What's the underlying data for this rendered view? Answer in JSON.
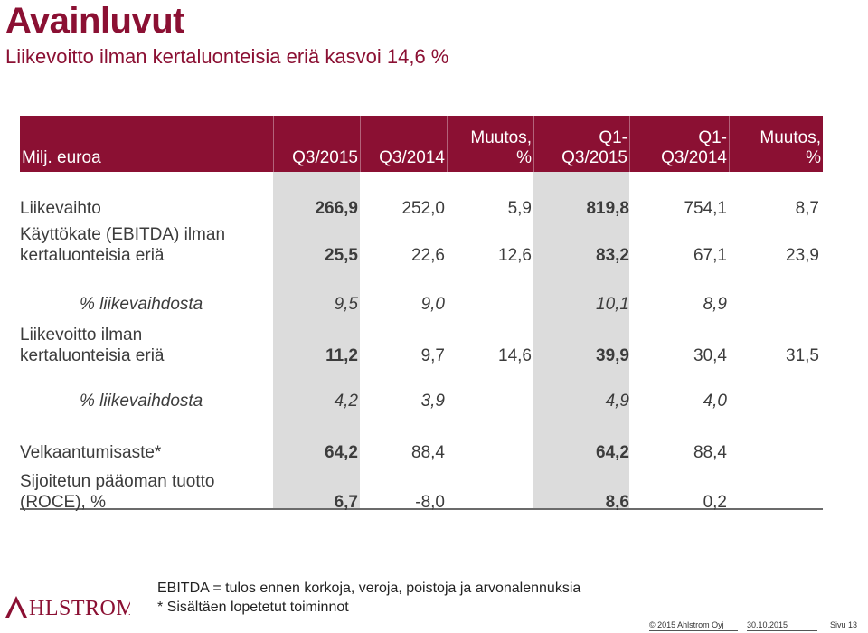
{
  "page": {
    "title": "Avainluvut",
    "subtitle": "Liikevoitto ilman kertaluonteisia eriä kasvoi 14,6 %"
  },
  "table": {
    "header": {
      "unit": "Milj. euroa",
      "columns": [
        [
          "Q3/2015"
        ],
        [
          "Q3/2014"
        ],
        [
          "Muutos,",
          "%"
        ],
        [
          "Q1-",
          "Q3/2015"
        ],
        [
          "Q1-",
          "Q3/2014"
        ],
        [
          "Muutos,",
          "%"
        ]
      ]
    },
    "rows": [
      {
        "label": [
          "Liikevaihto"
        ],
        "values": [
          "266,9",
          "252,0",
          "5,9",
          "819,8",
          "754,1",
          "8,7"
        ],
        "style": "normal"
      },
      {
        "label": [
          "Käyttökate (EBITDA) ilman",
          "kertaluonteisia eriä"
        ],
        "values": [
          "25,5",
          "22,6",
          "12,6",
          "83,2",
          "67,1",
          "23,9"
        ],
        "style": "normal"
      },
      {
        "label": [
          "% liikevaihdosta"
        ],
        "values": [
          "9,5",
          "9,0",
          "",
          "10,1",
          "8,9",
          ""
        ],
        "style": "sub"
      },
      {
        "label": [
          "Liikevoitto ilman",
          "kertaluonteisia eriä"
        ],
        "values": [
          "11,2",
          "9,7",
          "14,6",
          "39,9",
          "30,4",
          "31,5"
        ],
        "style": "normal"
      },
      {
        "label": [
          "% liikevaihdosta"
        ],
        "values": [
          "4,2",
          "3,9",
          "",
          "4,9",
          "4,0",
          ""
        ],
        "style": "sub"
      },
      {
        "label": [
          "Velkaantumisaste*"
        ],
        "values": [
          "64,2",
          "88,4",
          "",
          "64,2",
          "88,4",
          ""
        ],
        "style": "normal"
      },
      {
        "label": [
          "Sijoitetun pääoman tuotto",
          "(ROCE), %"
        ],
        "values": [
          "6,7",
          "-8,0",
          "",
          "8,6",
          "0,2",
          ""
        ],
        "style": "normal"
      }
    ]
  },
  "footnotes": [
    "EBITDA = tulos ennen korkoja, veroja, poistoja ja arvonalennuksia",
    "* Sisältäen lopetetut toiminnot"
  ],
  "logo": {
    "text": "AHLSTROM",
    "color": "#8b1033"
  },
  "footer": {
    "copyright": "© 2015 Ahlstrom Oyj",
    "date": "30.10.2015",
    "page": "Sivu 13"
  },
  "colors": {
    "accent": "#8b1033",
    "shade": "#dcdcdc"
  }
}
